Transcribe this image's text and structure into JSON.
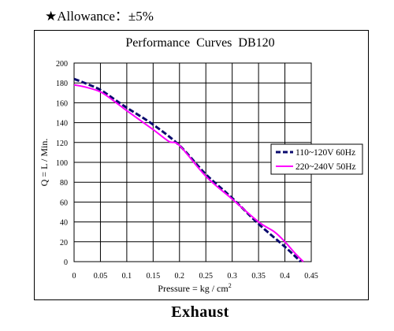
{
  "allowance": "★Allowance：±5%",
  "caption": "Exhaust",
  "chart_data": {
    "type": "line",
    "title": "Performance Curves DB120",
    "xlabel": "Pressure = kg / cm",
    "xlabel_sup": "2",
    "ylabel": "Q = L / Min.",
    "xlim": [
      0,
      0.45
    ],
    "ylim": [
      0,
      200
    ],
    "xticks": [
      "0",
      "0.05",
      "0.1",
      "0.15",
      "0.2",
      "0.25",
      "0.3",
      "0.35",
      "0.4",
      "0.45"
    ],
    "yticks": [
      "0",
      "20",
      "40",
      "60",
      "80",
      "100",
      "120",
      "140",
      "160",
      "180",
      "200"
    ],
    "grid": true,
    "legend_position": "right",
    "series": [
      {
        "name": "110~120V 60Hz",
        "color": "#0a0a6e",
        "style": "dashed",
        "x": [
          0,
          0.02,
          0.05,
          0.075,
          0.1,
          0.15,
          0.2,
          0.25,
          0.3,
          0.35,
          0.4,
          0.43
        ],
        "y": [
          184,
          180,
          173,
          164,
          155,
          138,
          117,
          88,
          64,
          38,
          15,
          0
        ]
      },
      {
        "name": "220~240V 50Hz",
        "color": "#ff00ff",
        "style": "solid",
        "x": [
          0,
          0.02,
          0.05,
          0.075,
          0.1,
          0.15,
          0.18,
          0.2,
          0.25,
          0.3,
          0.35,
          0.38,
          0.4,
          0.42,
          0.435
        ],
        "y": [
          178,
          176,
          171,
          162,
          152,
          133,
          121,
          117,
          86,
          63,
          40,
          30,
          20,
          8,
          0
        ]
      }
    ]
  }
}
